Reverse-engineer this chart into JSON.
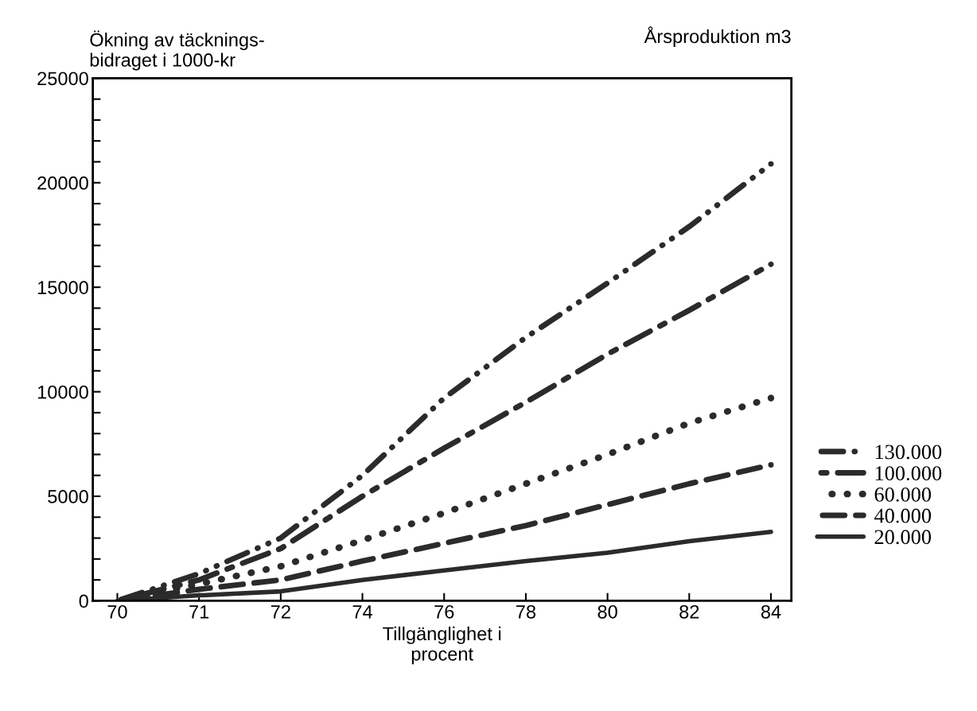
{
  "chart_data": {
    "type": "line",
    "ylabel": "Ökning av täcknings-\nbidraget i 1000-kr",
    "xlabel": "Tillgänglighet i\nprocent",
    "legend_title": "Årsproduktion m3",
    "categories": [
      "70",
      "71",
      "72",
      "74",
      "76",
      "78",
      "80",
      "82",
      "84"
    ],
    "ylim": [
      0,
      25000
    ],
    "yticks": [
      0,
      {
        "value": 1000,
        "label": null
      },
      {
        "value": 2000,
        "label": null
      },
      {
        "value": 3000,
        "label": null
      },
      {
        "value": 4000,
        "label": null
      },
      5000,
      {
        "value": 6000,
        "label": null
      },
      {
        "value": 7000,
        "label": null
      },
      {
        "value": 8000,
        "label": null
      },
      {
        "value": 9000,
        "label": null
      },
      10000,
      {
        "value": 11000,
        "label": null
      },
      {
        "value": 12000,
        "label": null
      },
      {
        "value": 13000,
        "label": null
      },
      {
        "value": 14000,
        "label": null
      },
      15000,
      {
        "value": 16000,
        "label": null
      },
      {
        "value": 17000,
        "label": null
      },
      {
        "value": 18000,
        "label": null
      },
      {
        "value": 19000,
        "label": null
      },
      20000,
      {
        "value": 21000,
        "label": null
      },
      {
        "value": 22000,
        "label": null
      },
      {
        "value": 23000,
        "label": null
      },
      {
        "value": 24000,
        "label": null
      },
      25000
    ],
    "grid": false,
    "legend": "right",
    "series": [
      {
        "name": "130.000",
        "color": "#2b2b2b",
        "line_style": "dashdotdot",
        "values": [
          0,
          1300,
          3000,
          6000,
          9700,
          12600,
          15200,
          17900,
          20900
        ]
      },
      {
        "name": "100.000",
        "color": "#2b2b2b",
        "line_style": "dashdot",
        "values": [
          0,
          1000,
          2500,
          5000,
          7300,
          9500,
          11800,
          13900,
          16100
        ]
      },
      {
        "name": "60.000",
        "color": "#2b2b2b",
        "line_style": "dotted",
        "values": [
          0,
          800,
          1650,
          2900,
          4200,
          5600,
          7000,
          8500,
          9700
        ]
      },
      {
        "name": "40.000",
        "color": "#2b2b2b",
        "line_style": "dashed",
        "values": [
          0,
          550,
          1000,
          1900,
          2750,
          3600,
          4600,
          5600,
          6500
        ]
      },
      {
        "name": "20.000",
        "color": "#2b2b2b",
        "line_style": "solid",
        "values": [
          0,
          260,
          450,
          1000,
          1450,
          1900,
          2300,
          2850,
          3300
        ]
      }
    ]
  }
}
